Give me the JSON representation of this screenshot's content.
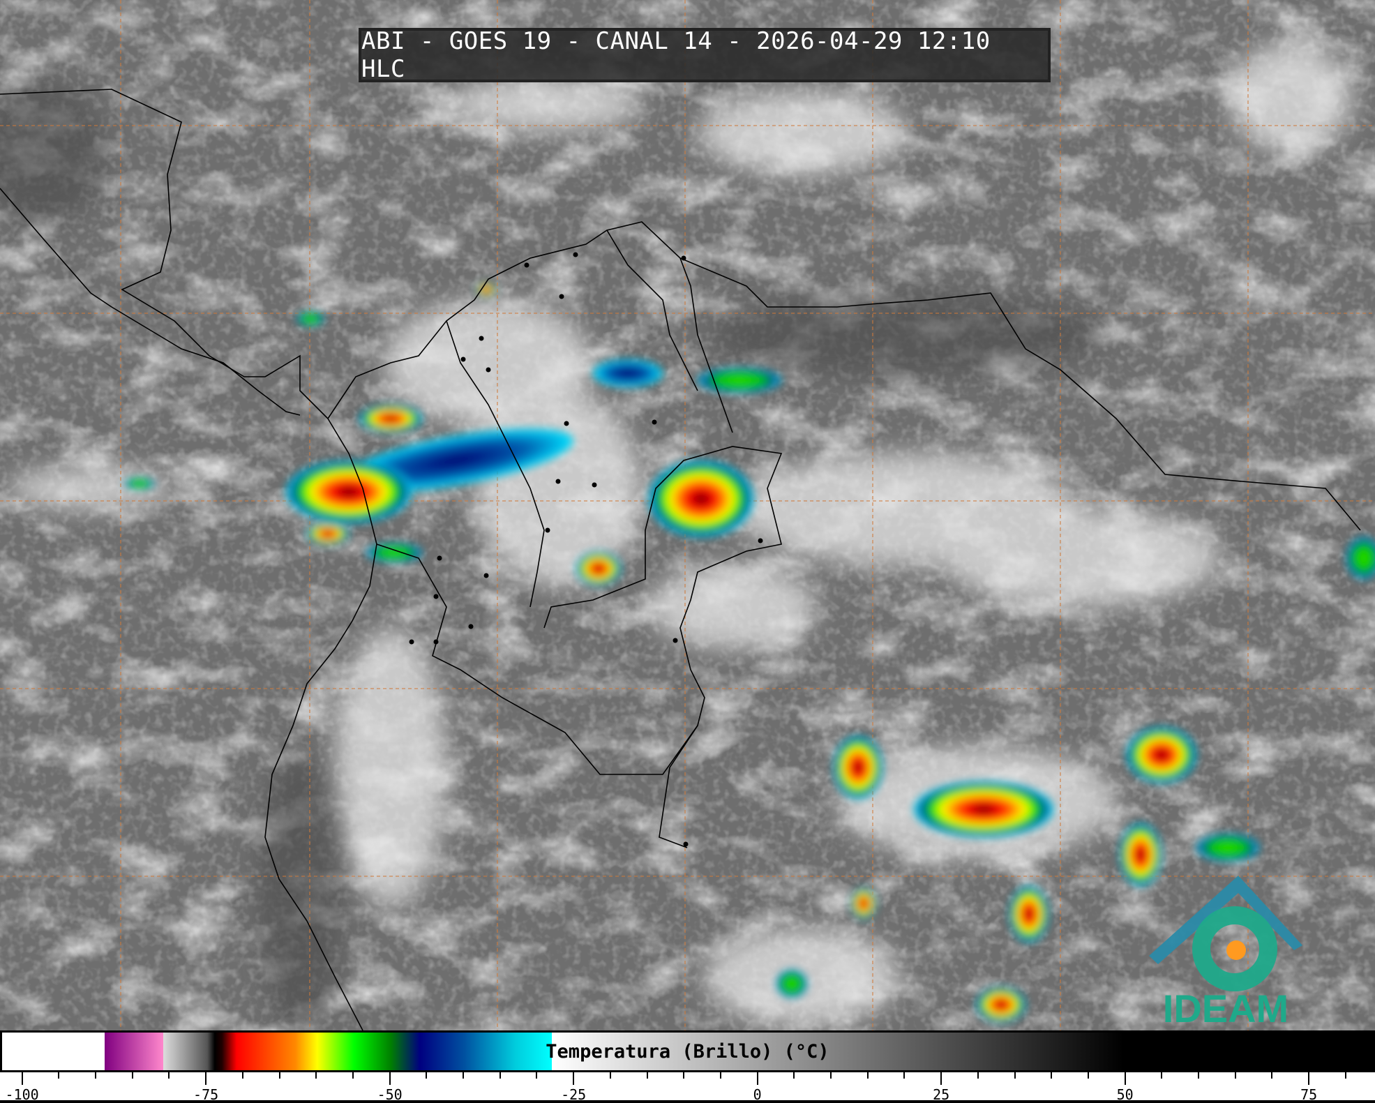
{
  "title": "ABI - GOES 19 - CANAL 14 - 2026-04-29 12:10 HLC",
  "logo": {
    "text": "IDEAM",
    "color": "#1fa98a",
    "roof_color": "#2a8aa8"
  },
  "colorbar": {
    "label": "Temperatura (Brillo) (°C)",
    "range": [
      -103,
      84
    ],
    "major_ticks": [
      -100,
      -75,
      -50,
      -25,
      0,
      25,
      50,
      75
    ],
    "tick_labels": [
      "-100",
      "-75",
      "-50",
      "-25",
      "0",
      "25",
      "50",
      "75"
    ],
    "minor_step": 5,
    "stops": [
      [
        -103,
        "#ffffff"
      ],
      [
        -89,
        "#ffffff"
      ],
      [
        -89,
        "#800080"
      ],
      [
        -81,
        "#ff88cc"
      ],
      [
        -81,
        "#dddddd"
      ],
      [
        -75,
        "#555555"
      ],
      [
        -74,
        "#000000"
      ],
      [
        -73,
        "#200000"
      ],
      [
        -71,
        "#ff0000"
      ],
      [
        -63,
        "#ff8800"
      ],
      [
        -60,
        "#ffff00"
      ],
      [
        -55,
        "#00ff00"
      ],
      [
        -50,
        "#008000"
      ],
      [
        -46,
        "#000080"
      ],
      [
        -40,
        "#0050a0"
      ],
      [
        -33,
        "#00ccdd"
      ],
      [
        -28,
        "#00ffff"
      ],
      [
        -28,
        "#ffffff"
      ],
      [
        50,
        "#000000"
      ],
      [
        84,
        "#000000"
      ]
    ]
  },
  "map": {
    "background": "#6e6e6e",
    "gridline_color": "#d07a3a",
    "border_color": "#000000"
  }
}
